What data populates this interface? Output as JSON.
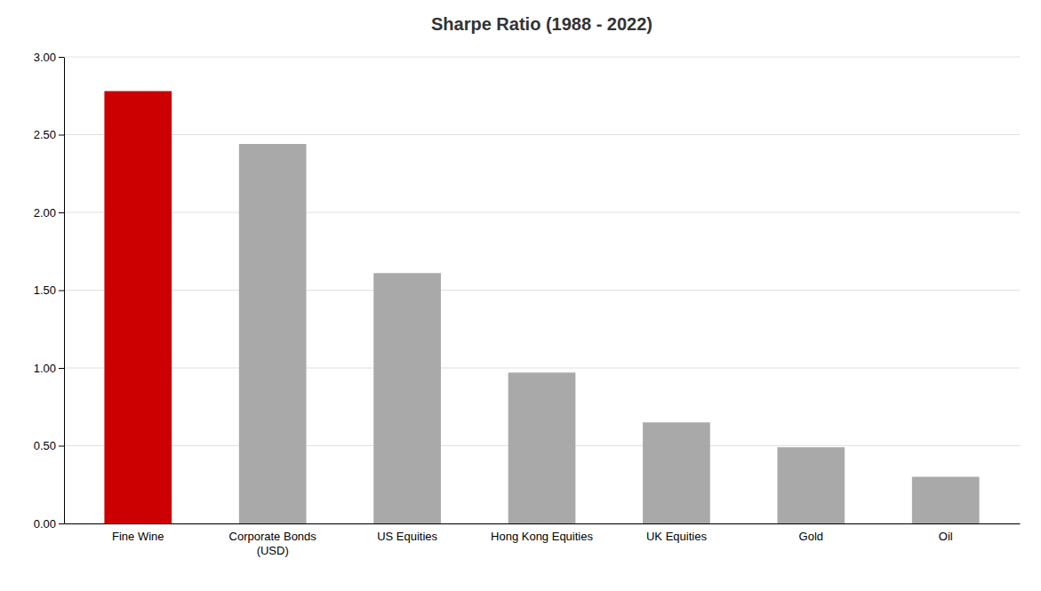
{
  "chart_data": {
    "type": "bar",
    "title": "Sharpe Ratio (1988 - 2022)",
    "categories": [
      "Fine Wine",
      "Corporate Bonds\n(USD)",
      "US Equities",
      "Hong Kong Equities",
      "UK Equities",
      "Gold",
      "Oil"
    ],
    "values": [
      2.78,
      2.44,
      1.61,
      0.97,
      0.65,
      0.49,
      0.3
    ],
    "colors": [
      "#cc0000",
      "#a9a9a9",
      "#a9a9a9",
      "#a9a9a9",
      "#a9a9a9",
      "#a9a9a9",
      "#a9a9a9"
    ],
    "ylim": [
      0,
      3.0
    ],
    "yticks": [
      {
        "value": 0.0,
        "label": "0.00"
      },
      {
        "value": 0.5,
        "label": "0.50"
      },
      {
        "value": 1.0,
        "label": "1.00"
      },
      {
        "value": 1.5,
        "label": "1.50"
      },
      {
        "value": 2.0,
        "label": "2.00"
      },
      {
        "value": 2.5,
        "label": "2.50"
      },
      {
        "value": 3.0,
        "label": "3.00"
      }
    ],
    "grid": true
  }
}
